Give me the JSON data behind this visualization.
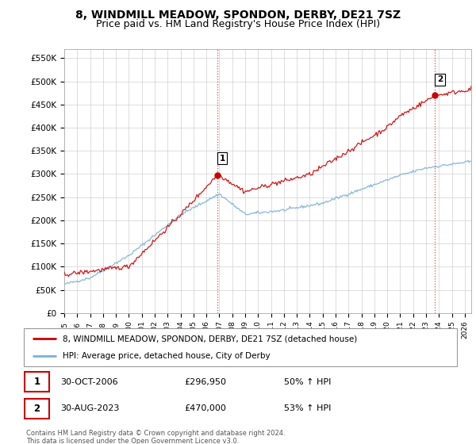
{
  "title": "8, WINDMILL MEADOW, SPONDON, DERBY, DE21 7SZ",
  "subtitle": "Price paid vs. HM Land Registry's House Price Index (HPI)",
  "ylabel_ticks": [
    "£0",
    "£50K",
    "£100K",
    "£150K",
    "£200K",
    "£250K",
    "£300K",
    "£350K",
    "£400K",
    "£450K",
    "£500K",
    "£550K"
  ],
  "ytick_values": [
    0,
    50000,
    100000,
    150000,
    200000,
    250000,
    300000,
    350000,
    400000,
    450000,
    500000,
    550000
  ],
  "ylim": [
    0,
    570000
  ],
  "xlim_start": 1995.0,
  "xlim_end": 2026.5,
  "xtick_years": [
    1995,
    1996,
    1997,
    1998,
    1999,
    2000,
    2001,
    2002,
    2003,
    2004,
    2005,
    2006,
    2007,
    2008,
    2009,
    2010,
    2011,
    2012,
    2013,
    2014,
    2015,
    2016,
    2017,
    2018,
    2019,
    2020,
    2021,
    2022,
    2023,
    2024,
    2025,
    2026
  ],
  "red_line_color": "#cc0000",
  "blue_line_color": "#7ab0d4",
  "point1_x": 2006.83,
  "point1_y": 296950,
  "point2_x": 2023.67,
  "point2_y": 470000,
  "legend_red": "8, WINDMILL MEADOW, SPONDON, DERBY, DE21 7SZ (detached house)",
  "legend_blue": "HPI: Average price, detached house, City of Derby",
  "annotation1_date": "30-OCT-2006",
  "annotation1_price": "£296,950",
  "annotation1_hpi": "50% ↑ HPI",
  "annotation2_date": "30-AUG-2023",
  "annotation2_price": "£470,000",
  "annotation2_hpi": "53% ↑ HPI",
  "footer": "Contains HM Land Registry data © Crown copyright and database right 2024.\nThis data is licensed under the Open Government Licence v3.0.",
  "grid_color": "#d0d0d0",
  "title_fontsize": 10,
  "subtitle_fontsize": 9
}
